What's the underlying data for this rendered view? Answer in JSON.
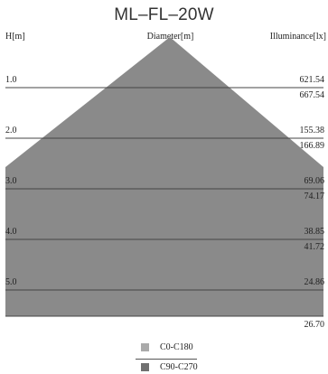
{
  "title": "ML–FL–20W",
  "headers": {
    "height": "H[m]",
    "diameter": "Diameter[m]",
    "illuminance": "Illuminance[lx]"
  },
  "rows": [
    {
      "height": "1.0",
      "c0": "621.54",
      "c90": "667.54"
    },
    {
      "height": "2.0",
      "c0": "155.38",
      "c90": "166.89"
    },
    {
      "height": "3.0",
      "c0": "69.06",
      "c90": "74.17"
    },
    {
      "height": "4.0",
      "c0": "38.85",
      "c90": "41.72"
    },
    {
      "height": "5.0",
      "c0": "24.86",
      "c90": "26.70"
    }
  ],
  "legend": [
    {
      "label": "C0-C180",
      "color": "#aaaaaa"
    },
    {
      "label": "C90-C270",
      "color": "#707070"
    }
  ],
  "colors": {
    "c0_beam": "#c9c9c9",
    "c90_beam": "#8a8a8a",
    "grid_line": "#444444"
  }
}
